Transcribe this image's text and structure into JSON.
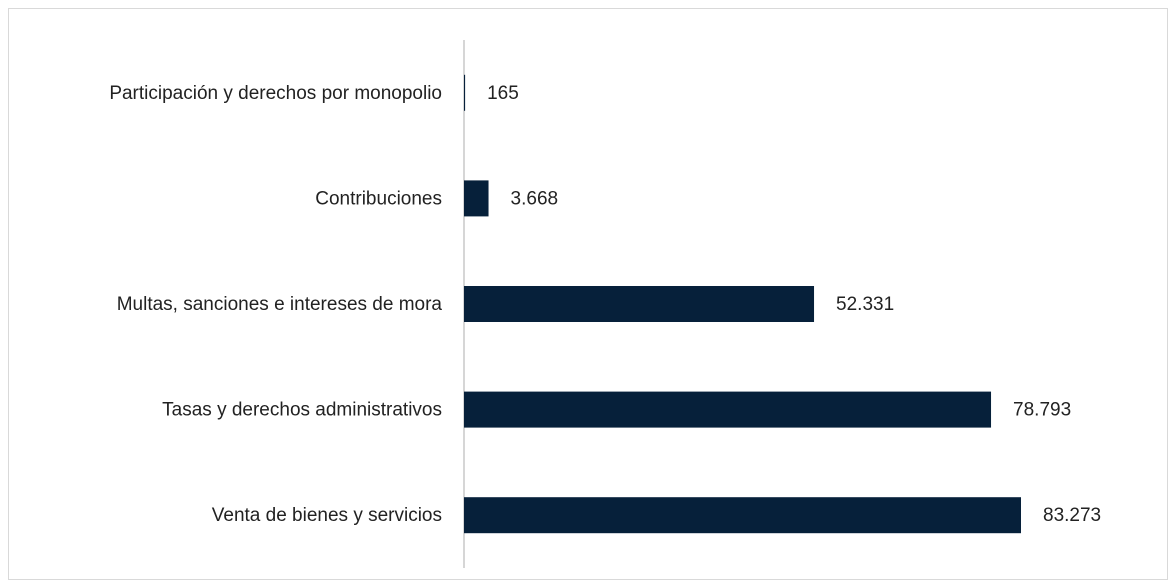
{
  "chart_data": {
    "type": "barh",
    "categories": [
      "Participación y derechos por monopolio",
      "Contribuciones",
      "Multas, sanciones e intereses de mora",
      "Tasas y derechos administrativos",
      "Venta de bienes y servicios"
    ],
    "values": [
      165,
      3668,
      52331,
      78793,
      83273
    ],
    "value_labels": [
      "165",
      "3.668",
      "52.331",
      "78.793",
      "83.273"
    ],
    "color": "#06203a"
  }
}
